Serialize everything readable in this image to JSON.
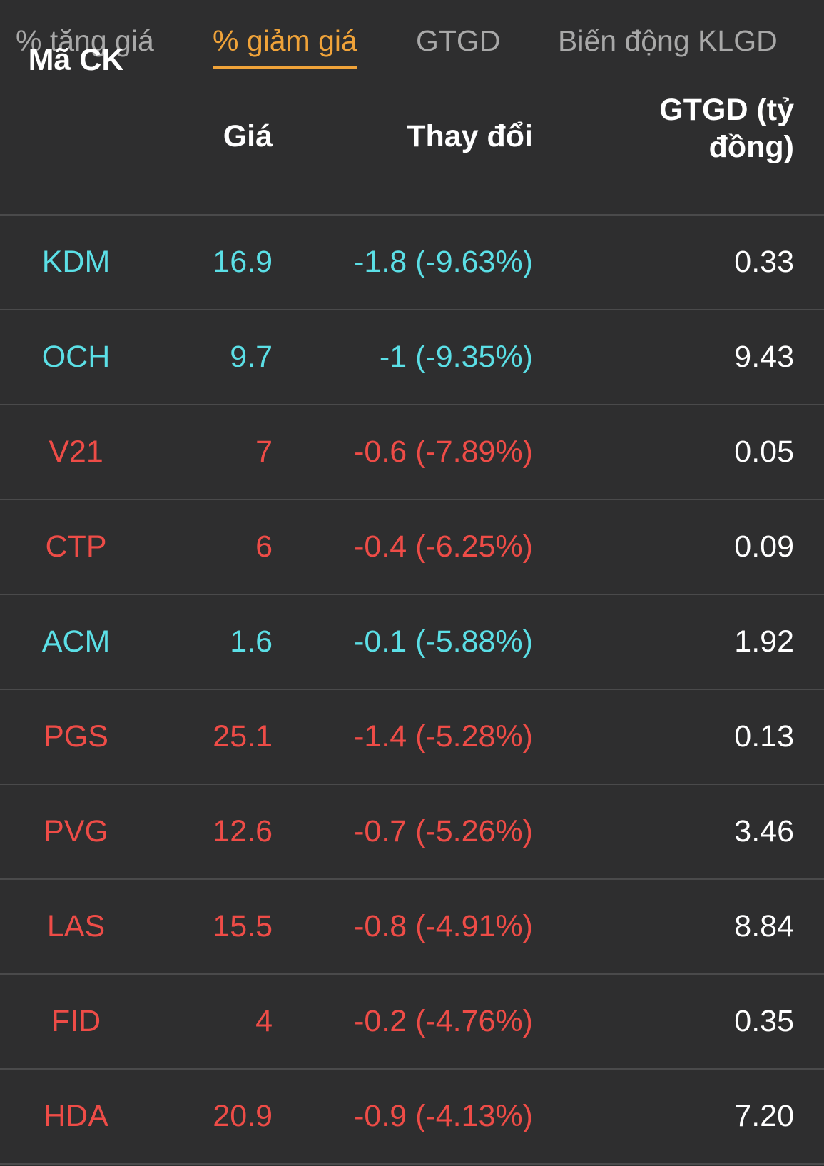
{
  "tabs": [
    {
      "label": "% tăng giá",
      "active": false
    },
    {
      "label": "% giảm giá",
      "active": true
    },
    {
      "label": "GTGD",
      "active": false
    },
    {
      "label": "Biến động KLGD",
      "active": false
    }
  ],
  "table": {
    "headers": {
      "code": "Mã CK",
      "price": "Giá",
      "change": "Thay đổi",
      "value": "GTGD (tỷ đồng)"
    },
    "rows": [
      {
        "code": "KDM",
        "price": "16.9",
        "change": "-1.8 (-9.63%)",
        "value": "0.33",
        "status": "floor"
      },
      {
        "code": "OCH",
        "price": "9.7",
        "change": "-1 (-9.35%)",
        "value": "9.43",
        "status": "floor"
      },
      {
        "code": "V21",
        "price": "7",
        "change": "-0.6 (-7.89%)",
        "value": "0.05",
        "status": "down"
      },
      {
        "code": "CTP",
        "price": "6",
        "change": "-0.4 (-6.25%)",
        "value": "0.09",
        "status": "down"
      },
      {
        "code": "ACM",
        "price": "1.6",
        "change": "-0.1 (-5.88%)",
        "value": "1.92",
        "status": "floor"
      },
      {
        "code": "PGS",
        "price": "25.1",
        "change": "-1.4 (-5.28%)",
        "value": "0.13",
        "status": "down"
      },
      {
        "code": "PVG",
        "price": "12.6",
        "change": "-0.7 (-5.26%)",
        "value": "3.46",
        "status": "down"
      },
      {
        "code": "LAS",
        "price": "15.5",
        "change": "-0.8 (-4.91%)",
        "value": "8.84",
        "status": "down"
      },
      {
        "code": "FID",
        "price": "4",
        "change": "-0.2 (-4.76%)",
        "value": "0.35",
        "status": "down"
      },
      {
        "code": "HDA",
        "price": "20.9",
        "change": "-0.9 (-4.13%)",
        "value": "7.20",
        "status": "down"
      }
    ]
  },
  "colors": {
    "background": "#2e2e2f",
    "active_tab": "#f0a339",
    "inactive_tab": "#a8a8a8",
    "down": "#ee4c47",
    "floor": "#5bdfe6",
    "neutral_text": "#ffffff",
    "divider": "#4a4a4b"
  }
}
